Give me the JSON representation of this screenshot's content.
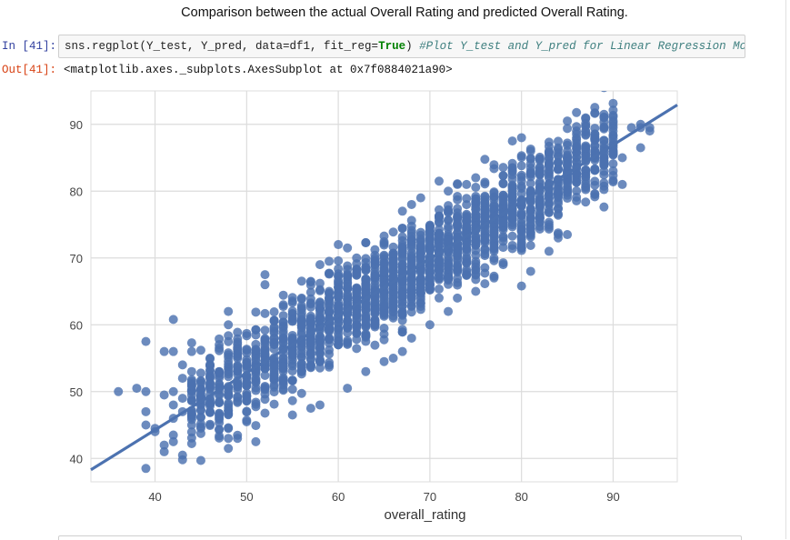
{
  "notebook": {
    "heading": "Comparison between the actual Overall Rating and predicted Overall Rating.",
    "input_prompt": "In [41]:",
    "output_prompt": "Out[41]:",
    "code": {
      "call": "sns.regplot(Y_test, Y_pred, data=df1, fit_reg=",
      "keyword": "True",
      "close": ")",
      "comment": "#Plot Y_test and Y_pred for Linear Regression Model."
    },
    "output_text": "<matplotlib.axes._subplots.AxesSubplot at 0x7f0884021a90>"
  },
  "chart_data": {
    "type": "scatter",
    "xlabel": "overall_rating",
    "ylabel": "",
    "xlim": [
      33,
      97
    ],
    "ylim": [
      36.5,
      95
    ],
    "xticks": [
      40,
      50,
      60,
      70,
      80,
      90
    ],
    "yticks": [
      40,
      50,
      60,
      70,
      80,
      90
    ],
    "grid": true,
    "point_color": "#4c72b0",
    "regression_line": {
      "x": [
        33,
        97
      ],
      "y": [
        38.3,
        92.9
      ],
      "color": "#4c72b0"
    },
    "cloud": {
      "slope": 0.853,
      "intercept": 10.14,
      "x_min": 36,
      "x_max": 94,
      "spread": 3.4
    },
    "points": [
      {
        "x": 36,
        "y": 50
      },
      {
        "x": 38,
        "y": 50.5
      },
      {
        "x": 39,
        "y": 57.5
      },
      {
        "x": 39,
        "y": 50
      },
      {
        "x": 39,
        "y": 47
      },
      {
        "x": 39,
        "y": 45
      },
      {
        "x": 39,
        "y": 38.5
      },
      {
        "x": 40,
        "y": 44.5
      },
      {
        "x": 40,
        "y": 44
      },
      {
        "x": 41,
        "y": 56
      },
      {
        "x": 41,
        "y": 49.5
      },
      {
        "x": 41,
        "y": 42
      },
      {
        "x": 41,
        "y": 41
      },
      {
        "x": 42,
        "y": 60.8
      },
      {
        "x": 42,
        "y": 56
      },
      {
        "x": 42,
        "y": 50
      },
      {
        "x": 42,
        "y": 48
      },
      {
        "x": 42,
        "y": 46
      },
      {
        "x": 42,
        "y": 43.5
      },
      {
        "x": 42,
        "y": 42.5
      },
      {
        "x": 43,
        "y": 54
      },
      {
        "x": 43,
        "y": 52
      },
      {
        "x": 43,
        "y": 49
      },
      {
        "x": 43,
        "y": 47
      },
      {
        "x": 43,
        "y": 40.5
      },
      {
        "x": 43,
        "y": 39.8
      },
      {
        "x": 44,
        "y": 57.3
      },
      {
        "x": 44,
        "y": 56
      },
      {
        "x": 44,
        "y": 53
      },
      {
        "x": 44,
        "y": 49.5
      },
      {
        "x": 44,
        "y": 45
      },
      {
        "x": 45,
        "y": 51.5
      },
      {
        "x": 45,
        "y": 48
      },
      {
        "x": 46,
        "y": 55
      },
      {
        "x": 46,
        "y": 51
      },
      {
        "x": 46,
        "y": 47
      },
      {
        "x": 47,
        "y": 56.5
      },
      {
        "x": 47,
        "y": 53
      },
      {
        "x": 48,
        "y": 62
      },
      {
        "x": 48,
        "y": 60
      },
      {
        "x": 48,
        "y": 44.5
      },
      {
        "x": 48,
        "y": 43
      },
      {
        "x": 48,
        "y": 41.5
      },
      {
        "x": 49,
        "y": 43
      },
      {
        "x": 51,
        "y": 42.5
      },
      {
        "x": 54,
        "y": 51
      },
      {
        "x": 57,
        "y": 47.5
      },
      {
        "x": 58,
        "y": 48
      },
      {
        "x": 55,
        "y": 46.5
      },
      {
        "x": 52,
        "y": 66
      },
      {
        "x": 52,
        "y": 67.5
      },
      {
        "x": 56,
        "y": 64
      },
      {
        "x": 57,
        "y": 66.5
      },
      {
        "x": 58,
        "y": 69
      },
      {
        "x": 59,
        "y": 69.5
      },
      {
        "x": 60,
        "y": 72
      },
      {
        "x": 61,
        "y": 71.5
      },
      {
        "x": 62,
        "y": 70
      },
      {
        "x": 63,
        "y": 72.3
      },
      {
        "x": 61,
        "y": 50.5
      },
      {
        "x": 63,
        "y": 53
      },
      {
        "x": 65,
        "y": 54.5
      },
      {
        "x": 66,
        "y": 55
      },
      {
        "x": 67,
        "y": 56
      },
      {
        "x": 67,
        "y": 77
      },
      {
        "x": 68,
        "y": 78
      },
      {
        "x": 69,
        "y": 79
      },
      {
        "x": 71,
        "y": 81.5
      },
      {
        "x": 72,
        "y": 80
      },
      {
        "x": 73,
        "y": 81
      },
      {
        "x": 74,
        "y": 81
      },
      {
        "x": 75,
        "y": 82
      },
      {
        "x": 68,
        "y": 58
      },
      {
        "x": 70,
        "y": 60
      },
      {
        "x": 72,
        "y": 62
      },
      {
        "x": 73,
        "y": 64
      },
      {
        "x": 75,
        "y": 65
      },
      {
        "x": 77,
        "y": 67
      },
      {
        "x": 79,
        "y": 87.5
      },
      {
        "x": 80,
        "y": 88
      },
      {
        "x": 81,
        "y": 86
      },
      {
        "x": 83,
        "y": 86
      },
      {
        "x": 78,
        "y": 69
      },
      {
        "x": 80,
        "y": 65.8
      },
      {
        "x": 81,
        "y": 68
      },
      {
        "x": 83,
        "y": 71
      },
      {
        "x": 84,
        "y": 73
      },
      {
        "x": 85,
        "y": 73.5
      },
      {
        "x": 85,
        "y": 90.5
      },
      {
        "x": 86,
        "y": 89
      },
      {
        "x": 87,
        "y": 89
      },
      {
        "x": 88,
        "y": 88.5
      },
      {
        "x": 89,
        "y": 91.5
      },
      {
        "x": 89,
        "y": 91
      },
      {
        "x": 90,
        "y": 89
      },
      {
        "x": 91,
        "y": 85
      },
      {
        "x": 91,
        "y": 81
      },
      {
        "x": 92,
        "y": 89.5
      },
      {
        "x": 93,
        "y": 89.5
      },
      {
        "x": 93,
        "y": 90
      },
      {
        "x": 93,
        "y": 86.5
      },
      {
        "x": 94,
        "y": 89.5
      },
      {
        "x": 94,
        "y": 89
      },
      {
        "x": 87,
        "y": 80.5
      },
      {
        "x": 89,
        "y": 84
      },
      {
        "x": 90,
        "y": 85.5
      }
    ]
  }
}
